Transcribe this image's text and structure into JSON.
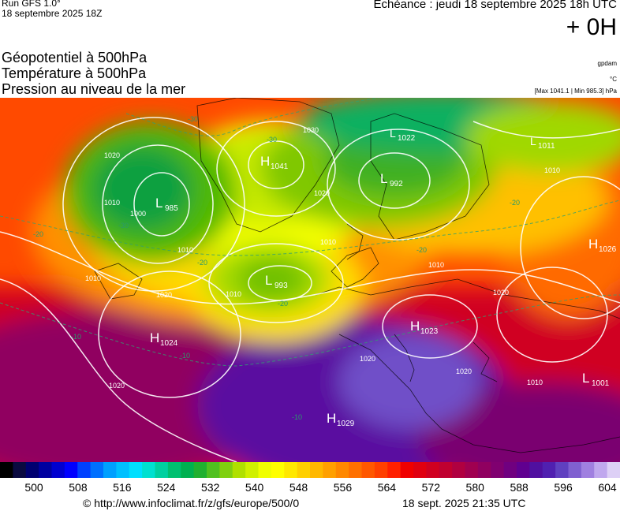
{
  "header": {
    "run": "Run GFS 1.0°",
    "run_date": "18 septembre 2025 18Z",
    "echeance": "Echéance : jeudi 18 septembre 2025 18h UTC",
    "lead_time": "+ 0H"
  },
  "titles": {
    "line1": "Géopotentiel à 500hPa",
    "line2": "Température à 500hPa",
    "line3": "Pression au niveau de la mer"
  },
  "units": {
    "geopotential": "gpdam",
    "temperature": "°C",
    "pressure_range": "[Max 1041.1 | Min 985.3] hPa"
  },
  "pressure_centers": [
    {
      "type": "L",
      "value": "985"
    },
    {
      "type": "H",
      "value": "1041"
    },
    {
      "type": "L",
      "value": "992"
    },
    {
      "type": "L",
      "value": "1022"
    },
    {
      "type": "L",
      "value": "1011"
    },
    {
      "type": "H",
      "value": "1026"
    },
    {
      "type": "L",
      "value": "993"
    },
    {
      "type": "H",
      "value": "1024"
    },
    {
      "type": "H",
      "value": "1023"
    },
    {
      "type": "H",
      "value": "1029"
    },
    {
      "type": "L",
      "value": "1001"
    }
  ],
  "isobar_labels": [
    "1020",
    "1010",
    "1000",
    "1010",
    "1030",
    "1020",
    "1010",
    "1010",
    "1020",
    "1010",
    "1020",
    "1010",
    "1020",
    "1020",
    "1010",
    "1010",
    "1020"
  ],
  "isotherm_labels": [
    "-30",
    "-30",
    "-30",
    "-20",
    "-20",
    "-20",
    "-20",
    "-10",
    "-10",
    "-10",
    "-20"
  ],
  "colorbar": {
    "min": 500,
    "max": 604,
    "step": 2,
    "tick_labels": [
      "500",
      "508",
      "516",
      "524",
      "532",
      "540",
      "548",
      "556",
      "564",
      "572",
      "580",
      "588",
      "596",
      "604"
    ],
    "colors": [
      "#000000",
      "#0a0a40",
      "#000070",
      "#0000a0",
      "#0000d0",
      "#0000ff",
      "#0040ff",
      "#0070ff",
      "#00a0ff",
      "#00c0ff",
      "#00dfff",
      "#00e0d0",
      "#00d0a0",
      "#00c070",
      "#00b050",
      "#20b030",
      "#50c020",
      "#80d010",
      "#b0e000",
      "#d0f000",
      "#f0ff00",
      "#ffff00",
      "#ffe800",
      "#ffd000",
      "#ffb800",
      "#ffa000",
      "#ff8800",
      "#ff7000",
      "#ff5800",
      "#ff4000",
      "#ff2000",
      "#f00000",
      "#e00010",
      "#d00020",
      "#c00030",
      "#b00040",
      "#a00050",
      "#900060",
      "#800070",
      "#700080",
      "#600090",
      "#5010a0",
      "#5020b0",
      "#6040c0",
      "#8060d0",
      "#a080e0",
      "#c0a8ee",
      "#ddd0f6"
    ]
  },
  "footer": {
    "url": "© http://www.infoclimat.fr/z/gfs/europe/500/0",
    "date": "18 sept. 2025 21:35 UTC"
  }
}
